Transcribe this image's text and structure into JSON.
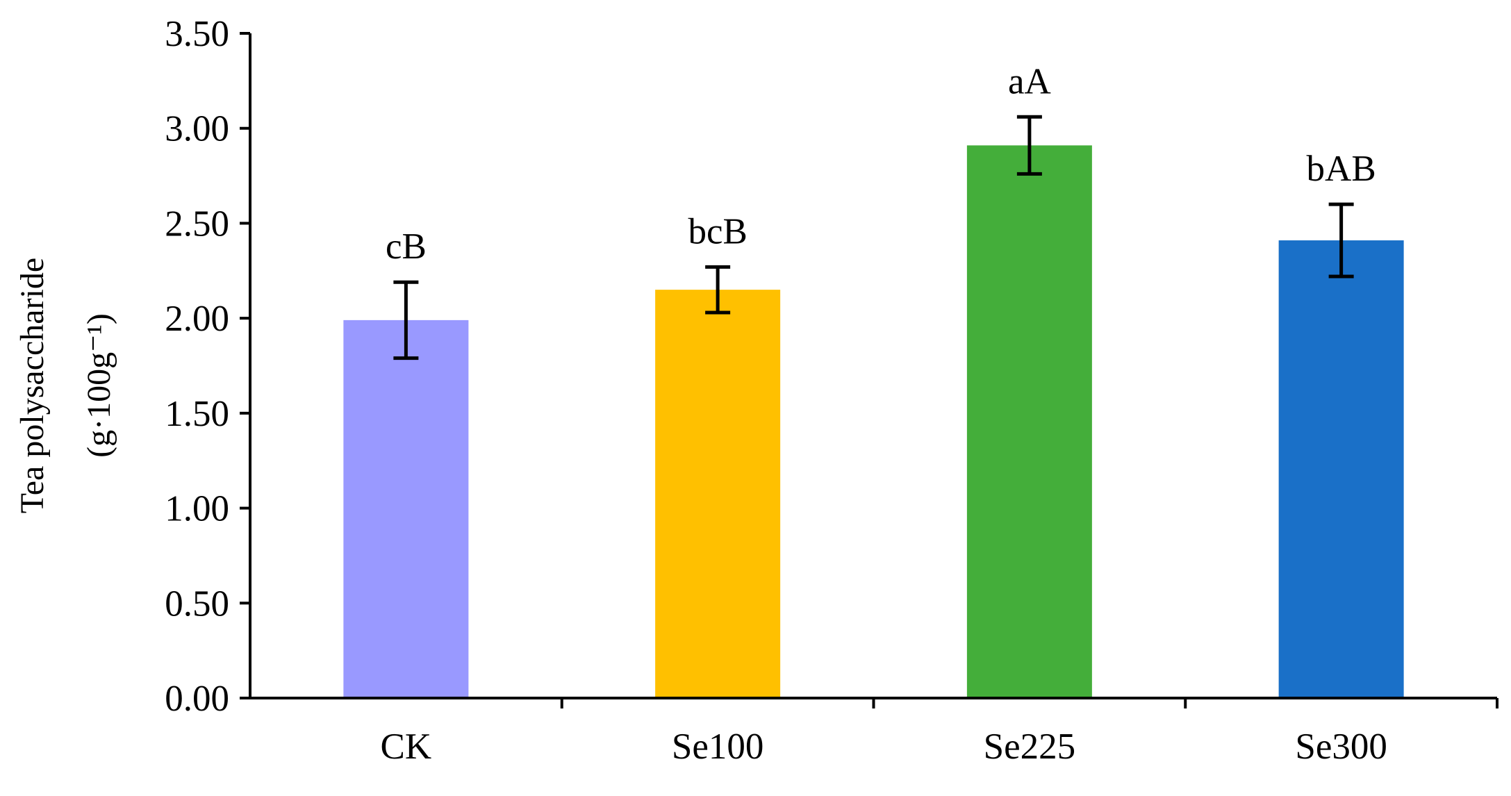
{
  "chart_data": {
    "type": "bar",
    "categories": [
      "CK",
      "Se100",
      "Se225",
      "Se300"
    ],
    "values": [
      1.99,
      2.15,
      2.91,
      2.41
    ],
    "errors": [
      0.2,
      0.12,
      0.15,
      0.19
    ],
    "significance_labels": [
      "cB",
      "bcB",
      "aA",
      "bAB"
    ],
    "colors": [
      "#9999FF",
      "#FFC000",
      "#44AE3A",
      "#1A70C8"
    ],
    "ylabel_line1": "Tea polysaccharide",
    "ylabel_line2": "(g·100g⁻¹)",
    "xlabel": "",
    "title": "",
    "ylim": [
      0,
      3.5
    ],
    "yticks": [
      "0.00",
      "0.50",
      "1.00",
      "1.50",
      "2.00",
      "2.50",
      "3.00",
      "3.50"
    ],
    "grid": false,
    "legend": "none"
  }
}
